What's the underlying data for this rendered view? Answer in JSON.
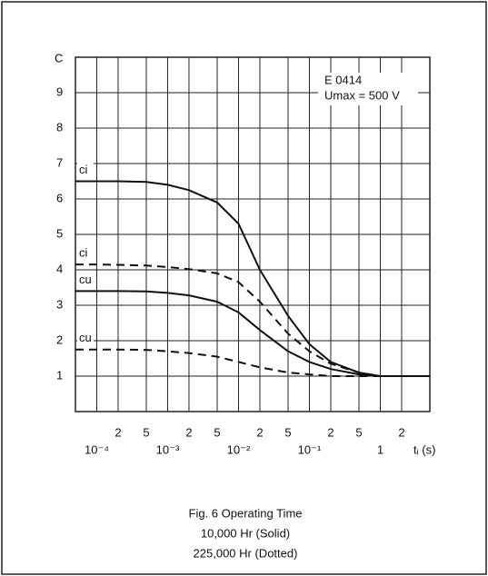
{
  "chart_data": {
    "type": "line",
    "y_label": "C",
    "x_label": "tᵢ (s)",
    "annotations": [
      "E 0414",
      "Umax = 500 V"
    ],
    "caption": [
      "Fig. 6  Operating Time",
      "10,000 Hr (Solid)",
      "225,000 Hr (Dotted)"
    ],
    "x_scale": "log",
    "grid": true,
    "xlim": [
      5e-05,
      5
    ],
    "xticks": [
      {
        "value": 0.0001,
        "label": "10⁻⁴"
      },
      {
        "value": 0.0002,
        "label": "2"
      },
      {
        "value": 0.0005,
        "label": "5"
      },
      {
        "value": 0.001,
        "label": "10⁻³"
      },
      {
        "value": 0.002,
        "label": "2"
      },
      {
        "value": 0.005,
        "label": "5"
      },
      {
        "value": 0.01,
        "label": "10⁻²"
      },
      {
        "value": 0.02,
        "label": "2"
      },
      {
        "value": 0.05,
        "label": "5"
      },
      {
        "value": 0.1,
        "label": "10⁻¹"
      },
      {
        "value": 0.2,
        "label": "2"
      },
      {
        "value": 0.5,
        "label": "5"
      },
      1,
      2
    ],
    "ylim": [
      0,
      10
    ],
    "yticks": [
      1,
      2,
      3,
      4,
      5,
      6,
      7,
      8,
      9
    ],
    "x": [
      5e-05,
      0.0001,
      0.0002,
      0.0005,
      0.001,
      0.002,
      0.005,
      0.01,
      0.02,
      0.05,
      0.1,
      0.2,
      0.5,
      1,
      2,
      5
    ],
    "series": [
      {
        "name": "ci",
        "color": "#111111",
        "style": "solid",
        "values": [
          6.5,
          6.5,
          6.5,
          6.48,
          6.4,
          6.25,
          5.9,
          5.3,
          4.0,
          2.7,
          1.9,
          1.4,
          1.1,
          1.0,
          1.0,
          1.0
        ]
      },
      {
        "name": "ci",
        "color": "#111111",
        "style": "dashed",
        "values": [
          4.15,
          4.15,
          4.14,
          4.12,
          4.08,
          4.02,
          3.9,
          3.65,
          3.1,
          2.2,
          1.7,
          1.35,
          1.1,
          1.0,
          1.0,
          1.0
        ]
      },
      {
        "name": "cu",
        "color": "#111111",
        "style": "solid",
        "values": [
          3.4,
          3.4,
          3.4,
          3.39,
          3.35,
          3.28,
          3.1,
          2.8,
          2.3,
          1.7,
          1.4,
          1.2,
          1.05,
          1.0,
          1.0,
          1.0
        ]
      },
      {
        "name": "cu",
        "color": "#111111",
        "style": "dashed",
        "values": [
          1.75,
          1.75,
          1.75,
          1.74,
          1.7,
          1.65,
          1.55,
          1.4,
          1.25,
          1.1,
          1.05,
          1.0,
          1.0,
          1.0,
          1.0,
          1.0
        ]
      }
    ]
  }
}
